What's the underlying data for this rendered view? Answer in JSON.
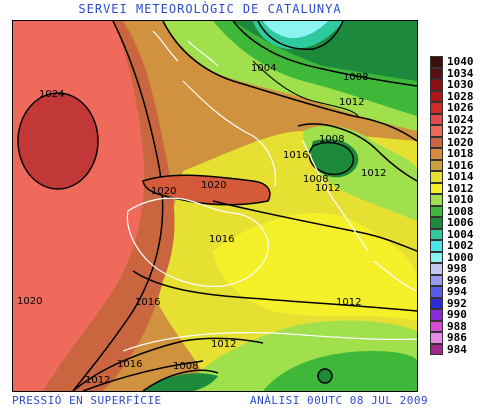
{
  "header": {
    "title": "SERVEI METEOROLÒGIC DE CATALUNYA"
  },
  "footer": {
    "left": "PRESSIÓ EN SUPERFÍCIE",
    "right": "ANÀLISI 00UTC 08 JUL 2009"
  },
  "map": {
    "isobar_labels": [
      "1024",
      "1004",
      "1008",
      "1012",
      "1008",
      "1016",
      "1008",
      "1012",
      "1012",
      "1020",
      "1020",
      "1016",
      "1016",
      "1012",
      "1016",
      "1012",
      "1008",
      "1012",
      "1020"
    ]
  },
  "legend": {
    "items": [
      {
        "label": "1040",
        "color": "#3a0f0a"
      },
      {
        "label": "1034",
        "color": "#5b1010"
      },
      {
        "label": "1030",
        "color": "#8c1010"
      },
      {
        "label": "1028",
        "color": "#b01515"
      },
      {
        "label": "1026",
        "color": "#d22a2a"
      },
      {
        "label": "1024",
        "color": "#e14b4b"
      },
      {
        "label": "1022",
        "color": "#ef6a5a"
      },
      {
        "label": "1020",
        "color": "#c9663f"
      },
      {
        "label": "1018",
        "color": "#d48c3c"
      },
      {
        "label": "1016",
        "color": "#c9a23b"
      },
      {
        "label": "1014",
        "color": "#e6e033"
      },
      {
        "label": "1012",
        "color": "#f5f02a"
      },
      {
        "label": "1010",
        "color": "#9fe04c"
      },
      {
        "label": "1008",
        "color": "#3fb83a"
      },
      {
        "label": "1006",
        "color": "#1c8a3a"
      },
      {
        "label": "1004",
        "color": "#2fc9a0"
      },
      {
        "label": "1002",
        "color": "#49e6e6"
      },
      {
        "label": "1000",
        "color": "#8cf3f3"
      },
      {
        "label": "998",
        "color": "#c6c6f5"
      },
      {
        "label": "996",
        "color": "#9a9af0"
      },
      {
        "label": "994",
        "color": "#5a5ae8"
      },
      {
        "label": "992",
        "color": "#2a2ad8"
      },
      {
        "label": "990",
        "color": "#8a2ad8"
      },
      {
        "label": "988",
        "color": "#d84ad8"
      },
      {
        "label": "986",
        "color": "#e88ae8"
      },
      {
        "label": "984",
        "color": "#a02a8a"
      }
    ]
  }
}
